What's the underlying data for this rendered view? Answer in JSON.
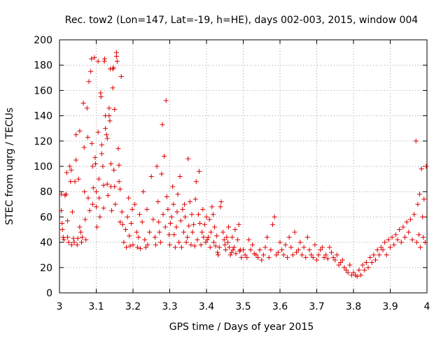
{
  "chart_data": {
    "type": "scatter",
    "title": "Rec. tow2 (Lon=147, Lat=-19, h=HE), days 002-003, 2015, window 004",
    "xlabel": "GPS time / Days of year 2015",
    "ylabel": "STEC from uqrg / TECUs",
    "xlim": [
      3,
      4
    ],
    "ylim": [
      0,
      200
    ],
    "x_ticks": [
      "3",
      "3.1",
      "3.2",
      "3.3",
      "3.4",
      "3.5",
      "3.6",
      "3.7",
      "3.8",
      "3.9",
      "4"
    ],
    "y_ticks": [
      "0",
      "20",
      "40",
      "60",
      "80",
      "100",
      "120",
      "140",
      "160",
      "180",
      "200"
    ],
    "grid": true,
    "marker": "+",
    "color": "#dd0000",
    "series": [
      {
        "name": "STEC",
        "points": [
          [
            3.005,
            78
          ],
          [
            3.005,
            65
          ],
          [
            3.007,
            55
          ],
          [
            3.008,
            50
          ],
          [
            3.01,
            44
          ],
          [
            3.012,
            42
          ],
          [
            3.015,
            77
          ],
          [
            3.018,
            78
          ],
          [
            3.02,
            95
          ],
          [
            3.022,
            57
          ],
          [
            3.022,
            44
          ],
          [
            3.025,
            40
          ],
          [
            3.028,
            100
          ],
          [
            3.03,
            88
          ],
          [
            3.032,
            97
          ],
          [
            3.033,
            38
          ],
          [
            3.035,
            64
          ],
          [
            3.038,
            43
          ],
          [
            3.04,
            40
          ],
          [
            3.042,
            88
          ],
          [
            3.045,
            125
          ],
          [
            3.045,
            105
          ],
          [
            3.048,
            38
          ],
          [
            3.05,
            43
          ],
          [
            3.052,
            90
          ],
          [
            3.055,
            128
          ],
          [
            3.055,
            52
          ],
          [
            3.058,
            48
          ],
          [
            3.06,
            40
          ],
          [
            3.062,
            44
          ],
          [
            3.065,
            150
          ],
          [
            3.067,
            115
          ],
          [
            3.068,
            80
          ],
          [
            3.07,
            58
          ],
          [
            3.072,
            42
          ],
          [
            3.075,
            146
          ],
          [
            3.077,
            123
          ],
          [
            3.078,
            75
          ],
          [
            3.08,
            167
          ],
          [
            3.082,
            65
          ],
          [
            3.085,
            175
          ],
          [
            3.087,
            185
          ],
          [
            3.088,
            118
          ],
          [
            3.09,
            100
          ],
          [
            3.09,
            70
          ],
          [
            3.092,
            83
          ],
          [
            3.095,
            186
          ],
          [
            3.097,
            107
          ],
          [
            3.098,
            102
          ],
          [
            3.1,
            80
          ],
          [
            3.1,
            68
          ],
          [
            3.102,
            52
          ],
          [
            3.105,
            183
          ],
          [
            3.105,
            127
          ],
          [
            3.107,
            90
          ],
          [
            3.108,
            75
          ],
          [
            3.11,
            60
          ],
          [
            3.112,
            158
          ],
          [
            3.113,
            155
          ],
          [
            3.115,
            117
          ],
          [
            3.115,
            110
          ],
          [
            3.118,
            100
          ],
          [
            3.12,
            85
          ],
          [
            3.12,
            67
          ],
          [
            3.122,
            183
          ],
          [
            3.123,
            185
          ],
          [
            3.125,
            140
          ],
          [
            3.125,
            130
          ],
          [
            3.128,
            125
          ],
          [
            3.13,
            122
          ],
          [
            3.13,
            86
          ],
          [
            3.132,
            77
          ],
          [
            3.135,
            146
          ],
          [
            3.135,
            140
          ],
          [
            3.137,
            136
          ],
          [
            3.138,
            177
          ],
          [
            3.14,
            102
          ],
          [
            3.14,
            84
          ],
          [
            3.142,
            65
          ],
          [
            3.145,
            177
          ],
          [
            3.145,
            162
          ],
          [
            3.147,
            178
          ],
          [
            3.148,
            97
          ],
          [
            3.15,
            145
          ],
          [
            3.15,
            84
          ],
          [
            3.152,
            70
          ],
          [
            3.155,
            190
          ],
          [
            3.155,
            187
          ],
          [
            3.157,
            183
          ],
          [
            3.16,
            114
          ],
          [
            3.162,
            101
          ],
          [
            3.162,
            88
          ],
          [
            3.165,
            82
          ],
          [
            3.165,
            56
          ],
          [
            3.168,
            171
          ],
          [
            3.17,
            64
          ],
          [
            3.172,
            54
          ],
          [
            3.175,
            40
          ],
          [
            3.18,
            50
          ],
          [
            3.182,
            36
          ],
          [
            3.185,
            60
          ],
          [
            3.188,
            75
          ],
          [
            3.19,
            45
          ],
          [
            3.192,
            37
          ],
          [
            3.195,
            55
          ],
          [
            3.198,
            66
          ],
          [
            3.2,
            38
          ],
          [
            3.205,
            70
          ],
          [
            3.21,
            48
          ],
          [
            3.212,
            36
          ],
          [
            3.215,
            44
          ],
          [
            3.218,
            62
          ],
          [
            3.22,
            35
          ],
          [
            3.225,
            56
          ],
          [
            3.228,
            80
          ],
          [
            3.232,
            42
          ],
          [
            3.235,
            36
          ],
          [
            3.238,
            66
          ],
          [
            3.24,
            38
          ],
          [
            3.245,
            48
          ],
          [
            3.25,
            92
          ],
          [
            3.255,
            58
          ],
          [
            3.26,
            44
          ],
          [
            3.262,
            38
          ],
          [
            3.265,
            100
          ],
          [
            3.268,
            72
          ],
          [
            3.27,
            56
          ],
          [
            3.272,
            48
          ],
          [
            3.275,
            40
          ],
          [
            3.278,
            94
          ],
          [
            3.28,
            133
          ],
          [
            3.282,
            62
          ],
          [
            3.285,
            108
          ],
          [
            3.288,
            52
          ],
          [
            3.29,
            152
          ],
          [
            3.292,
            76
          ],
          [
            3.295,
            66
          ],
          [
            3.298,
            46
          ],
          [
            3.3,
            38
          ],
          [
            3.302,
            55
          ],
          [
            3.305,
            60
          ],
          [
            3.308,
            84
          ],
          [
            3.31,
            70
          ],
          [
            3.312,
            46
          ],
          [
            3.315,
            36
          ],
          [
            3.318,
            52
          ],
          [
            3.32,
            64
          ],
          [
            3.322,
            78
          ],
          [
            3.325,
            40
          ],
          [
            3.328,
            92
          ],
          [
            3.33,
            57
          ],
          [
            3.332,
            36
          ],
          [
            3.335,
            66
          ],
          [
            3.338,
            48
          ],
          [
            3.34,
            70
          ],
          [
            3.342,
            60
          ],
          [
            3.345,
            40
          ],
          [
            3.348,
            44
          ],
          [
            3.35,
            106
          ],
          [
            3.352,
            53
          ],
          [
            3.355,
            72
          ],
          [
            3.358,
            38
          ],
          [
            3.36,
            62
          ],
          [
            3.362,
            48
          ],
          [
            3.365,
            54
          ],
          [
            3.368,
            37
          ],
          [
            3.37,
            74
          ],
          [
            3.372,
            88
          ],
          [
            3.375,
            42
          ],
          [
            3.378,
            62
          ],
          [
            3.38,
            96
          ],
          [
            3.382,
            55
          ],
          [
            3.385,
            38
          ],
          [
            3.388,
            48
          ],
          [
            3.39,
            66
          ],
          [
            3.392,
            44
          ],
          [
            3.395,
            54
          ],
          [
            3.398,
            40
          ],
          [
            3.4,
            60
          ],
          [
            3.402,
            42
          ],
          [
            3.405,
            44
          ],
          [
            3.408,
            58
          ],
          [
            3.41,
            36
          ],
          [
            3.412,
            48
          ],
          [
            3.415,
            68
          ],
          [
            3.418,
            62
          ],
          [
            3.42,
            40
          ],
          [
            3.422,
            52
          ],
          [
            3.425,
            37
          ],
          [
            3.428,
            45
          ],
          [
            3.43,
            32
          ],
          [
            3.432,
            30
          ],
          [
            3.435,
            36
          ],
          [
            3.438,
            68
          ],
          [
            3.44,
            72
          ],
          [
            3.445,
            48
          ],
          [
            3.448,
            42
          ],
          [
            3.45,
            38
          ],
          [
            3.452,
            34
          ],
          [
            3.455,
            44
          ],
          [
            3.458,
            40
          ],
          [
            3.46,
            52
          ],
          [
            3.462,
            36
          ],
          [
            3.465,
            30
          ],
          [
            3.468,
            32
          ],
          [
            3.47,
            44
          ],
          [
            3.472,
            34
          ],
          [
            3.475,
            36
          ],
          [
            3.478,
            50
          ],
          [
            3.48,
            31
          ],
          [
            3.485,
            42
          ],
          [
            3.488,
            54
          ],
          [
            3.49,
            33
          ],
          [
            3.492,
            34
          ],
          [
            3.495,
            28
          ],
          [
            3.5,
            34
          ],
          [
            3.505,
            30
          ],
          [
            3.51,
            28
          ],
          [
            3.515,
            42
          ],
          [
            3.52,
            34
          ],
          [
            3.525,
            38
          ],
          [
            3.53,
            31
          ],
          [
            3.535,
            30
          ],
          [
            3.54,
            28
          ],
          [
            3.545,
            34
          ],
          [
            3.55,
            26
          ],
          [
            3.555,
            30
          ],
          [
            3.56,
            36
          ],
          [
            3.565,
            44
          ],
          [
            3.57,
            28
          ],
          [
            3.575,
            34
          ],
          [
            3.58,
            54
          ],
          [
            3.585,
            60
          ],
          [
            3.59,
            30
          ],
          [
            3.595,
            32
          ],
          [
            3.6,
            40
          ],
          [
            3.605,
            34
          ],
          [
            3.61,
            30
          ],
          [
            3.615,
            38
          ],
          [
            3.62,
            28
          ],
          [
            3.625,
            44
          ],
          [
            3.63,
            36
          ],
          [
            3.635,
            30
          ],
          [
            3.64,
            48
          ],
          [
            3.645,
            32
          ],
          [
            3.65,
            34
          ],
          [
            3.655,
            40
          ],
          [
            3.66,
            30
          ],
          [
            3.665,
            36
          ],
          [
            3.67,
            28
          ],
          [
            3.675,
            44
          ],
          [
            3.68,
            34
          ],
          [
            3.685,
            30
          ],
          [
            3.69,
            28
          ],
          [
            3.695,
            38
          ],
          [
            3.7,
            26
          ],
          [
            3.705,
            30
          ],
          [
            3.71,
            34
          ],
          [
            3.715,
            36
          ],
          [
            3.72,
            28
          ],
          [
            3.725,
            30
          ],
          [
            3.73,
            27
          ],
          [
            3.735,
            36
          ],
          [
            3.74,
            32
          ],
          [
            3.745,
            28
          ],
          [
            3.75,
            26
          ],
          [
            3.755,
            30
          ],
          [
            3.76,
            22
          ],
          [
            3.765,
            24
          ],
          [
            3.77,
            26
          ],
          [
            3.775,
            20
          ],
          [
            3.78,
            18
          ],
          [
            3.785,
            16
          ],
          [
            3.79,
            22
          ],
          [
            3.795,
            14
          ],
          [
            3.8,
            16
          ],
          [
            3.805,
            14
          ],
          [
            3.81,
            13
          ],
          [
            3.815,
            18
          ],
          [
            3.82,
            14
          ],
          [
            3.825,
            22
          ],
          [
            3.83,
            18
          ],
          [
            3.835,
            24
          ],
          [
            3.84,
            20
          ],
          [
            3.845,
            28
          ],
          [
            3.85,
            24
          ],
          [
            3.855,
            30
          ],
          [
            3.86,
            26
          ],
          [
            3.865,
            34
          ],
          [
            3.87,
            30
          ],
          [
            3.875,
            36
          ],
          [
            3.88,
            34
          ],
          [
            3.885,
            40
          ],
          [
            3.89,
            30
          ],
          [
            3.895,
            42
          ],
          [
            3.9,
            36
          ],
          [
            3.905,
            44
          ],
          [
            3.91,
            38
          ],
          [
            3.915,
            46
          ],
          [
            3.92,
            42
          ],
          [
            3.925,
            50
          ],
          [
            3.93,
            40
          ],
          [
            3.935,
            52
          ],
          [
            3.94,
            44
          ],
          [
            3.945,
            56
          ],
          [
            3.95,
            48
          ],
          [
            3.955,
            58
          ],
          [
            3.96,
            42
          ],
          [
            3.965,
            62
          ],
          [
            3.97,
            120
          ],
          [
            3.972,
            40
          ],
          [
            3.975,
            70
          ],
          [
            3.978,
            46
          ],
          [
            3.98,
            78
          ],
          [
            3.982,
            36
          ],
          [
            3.985,
            98
          ],
          [
            3.988,
            60
          ],
          [
            3.99,
            44
          ],
          [
            3.992,
            74
          ],
          [
            3.995,
            40
          ],
          [
            3.998,
            100
          ]
        ]
      }
    ]
  }
}
